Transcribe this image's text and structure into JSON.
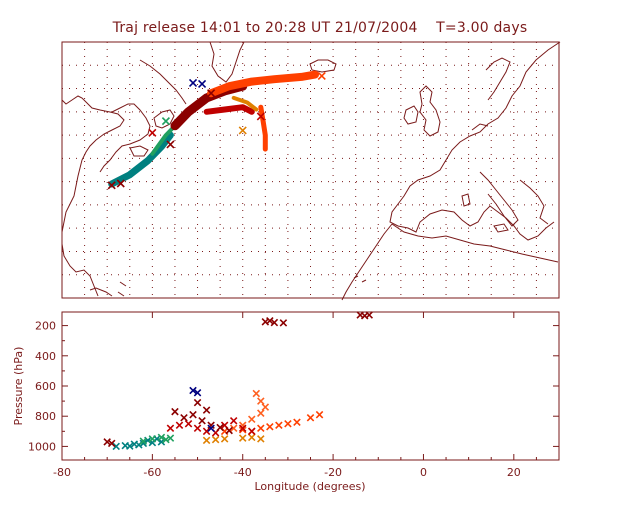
{
  "title": "Traj release 14:01 to 20:28 UT 21/07/2004    T=3.00 days",
  "colors": {
    "frame": "#7a1a1a",
    "grid": "#7a1a1a",
    "coast": "#7a1a1a",
    "background": "#ffffff"
  },
  "map_panel": {
    "grid": true,
    "lon_range": [
      -80,
      30
    ],
    "lat_range": [
      20,
      75
    ],
    "lon_grid_step": 5,
    "lat_grid_step": 5
  },
  "chart_data": {
    "type": "scatter",
    "title": "",
    "xlabel": "Longitude  (degrees)",
    "ylabel": "Pressure  (hPa)",
    "xlim": [
      -80,
      30
    ],
    "ylim": [
      1090,
      110
    ],
    "y_inverted": true,
    "xticks": [
      -80,
      -60,
      -40,
      -20,
      0,
      20
    ],
    "yticks": [
      200,
      400,
      600,
      800,
      1000
    ],
    "colors": [
      "#008080",
      "#20a060",
      "#e08000",
      "#ff4000",
      "#ff6020",
      "#c00000",
      "#8b0000",
      "#000080"
    ],
    "series": [
      {
        "color": "#008080",
        "points": [
          [
            -68,
            1000
          ],
          [
            -66,
            995
          ],
          [
            -64,
            985
          ],
          [
            -62,
            980
          ],
          [
            -60,
            975
          ],
          [
            -58,
            970
          ],
          [
            -63,
            990
          ],
          [
            -65,
            998
          ],
          [
            -61,
            960
          ],
          [
            -59,
            950
          ]
        ]
      },
      {
        "color": "#20a060",
        "points": [
          [
            -62,
            965
          ],
          [
            -60,
            950
          ],
          [
            -58,
            940
          ],
          [
            -56,
            945
          ],
          [
            -57,
            955
          ]
        ]
      },
      {
        "color": "#e08000",
        "points": [
          [
            -48,
            960
          ],
          [
            -46,
            955
          ],
          [
            -44,
            950
          ],
          [
            -40,
            945
          ],
          [
            -38,
            940
          ],
          [
            -36,
            950
          ]
        ]
      },
      {
        "color": "#ff4000",
        "points": [
          [
            -44,
            900
          ],
          [
            -40,
            890
          ],
          [
            -36,
            880
          ],
          [
            -32,
            860
          ],
          [
            -28,
            840
          ],
          [
            -25,
            810
          ],
          [
            -23,
            790
          ],
          [
            -30,
            850
          ],
          [
            -34,
            870
          ],
          [
            -38,
            900
          ]
        ]
      },
      {
        "color": "#ff6020",
        "points": [
          [
            -37,
            650
          ],
          [
            -36,
            700
          ],
          [
            -35,
            740
          ],
          [
            -36,
            780
          ],
          [
            -38,
            820
          ],
          [
            -40,
            860
          ],
          [
            -42,
            880
          ]
        ]
      },
      {
        "color": "#c00000",
        "points": [
          [
            -56,
            880
          ],
          [
            -54,
            860
          ],
          [
            -52,
            850
          ],
          [
            -50,
            880
          ],
          [
            -48,
            900
          ],
          [
            -46,
            910
          ],
          [
            -44,
            860
          ],
          [
            -42,
            830
          ],
          [
            -40,
            880
          ],
          [
            -38,
            900
          ]
        ]
      },
      {
        "color": "#8b0000",
        "points": [
          [
            -70,
            970
          ],
          [
            -69,
            980
          ],
          [
            -55,
            770
          ],
          [
            -53,
            810
          ],
          [
            -51,
            790
          ],
          [
            -49,
            830
          ],
          [
            -47,
            860
          ],
          [
            -45,
            875
          ],
          [
            -43,
            895
          ],
          [
            -35,
            175
          ],
          [
            -34,
            168
          ],
          [
            -33,
            180
          ],
          [
            -31,
            182
          ],
          [
            -14,
            130
          ],
          [
            -13,
            135
          ],
          [
            -12,
            130
          ],
          [
            -50,
            710
          ],
          [
            -48,
            760
          ]
        ]
      },
      {
        "color": "#000080",
        "points": [
          [
            -51,
            630
          ],
          [
            -50,
            645
          ],
          [
            -47,
            880
          ]
        ]
      }
    ]
  }
}
